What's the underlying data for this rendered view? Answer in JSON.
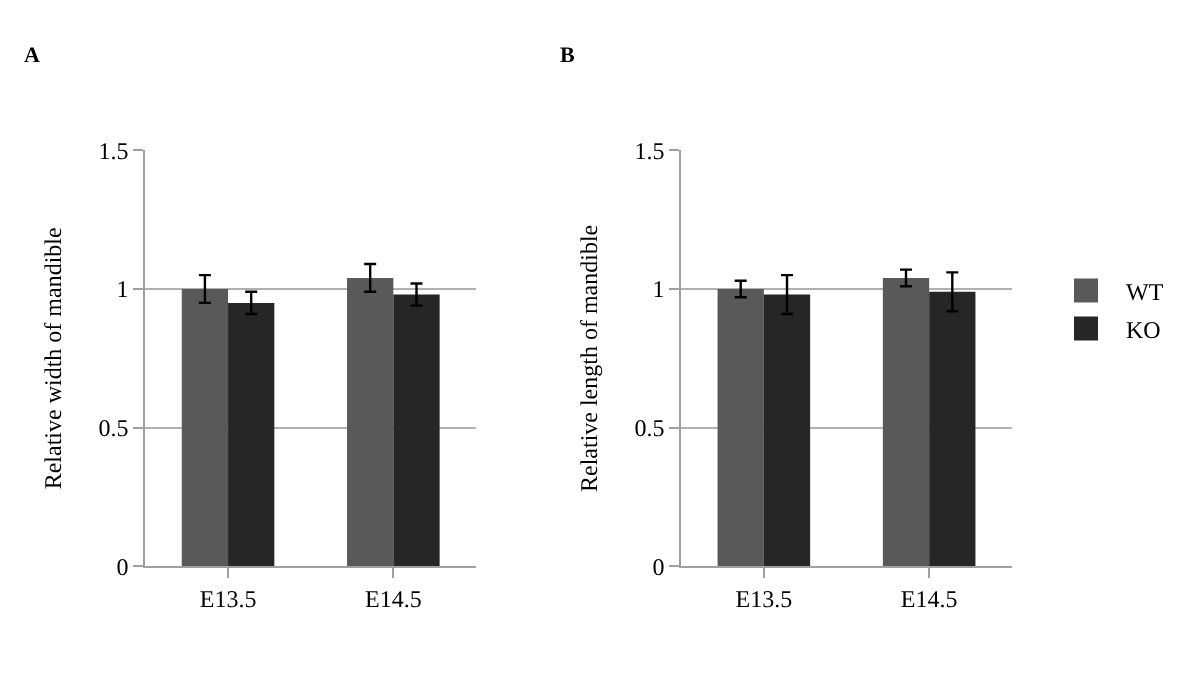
{
  "chart_data": [
    {
      "type": "bar",
      "title": "A",
      "ylabel": "Relative width of mandible",
      "categories": [
        "E13.5",
        "E14.5"
      ],
      "series": [
        {
          "color": "#595959",
          "values": [
            1.0,
            1.04
          ],
          "errors": [
            0.05,
            0.05
          ]
        },
        {
          "color": "#262626",
          "values": [
            0.95,
            0.98
          ],
          "errors": [
            0.04,
            0.04
          ]
        }
      ],
      "ylim": [
        0,
        1.5
      ],
      "yticks": [
        0,
        0.5,
        1,
        1.5
      ],
      "grid": "y",
      "legend": false
    },
    {
      "type": "bar",
      "title": "B",
      "ylabel": "Relative length of mandible",
      "categories": [
        "E13.5",
        "E14.5"
      ],
      "series": [
        {
          "name": "WT",
          "color": "#595959",
          "values": [
            1.0,
            1.04
          ],
          "errors": [
            0.03,
            0.03
          ]
        },
        {
          "name": "KO",
          "color": "#262626",
          "values": [
            0.98,
            0.99
          ],
          "errors": [
            0.07,
            0.07
          ]
        }
      ],
      "ylim": [
        0,
        1.5
      ],
      "yticks": [
        0,
        0.5,
        1,
        1.5
      ],
      "grid": "y",
      "legend": "right"
    }
  ]
}
